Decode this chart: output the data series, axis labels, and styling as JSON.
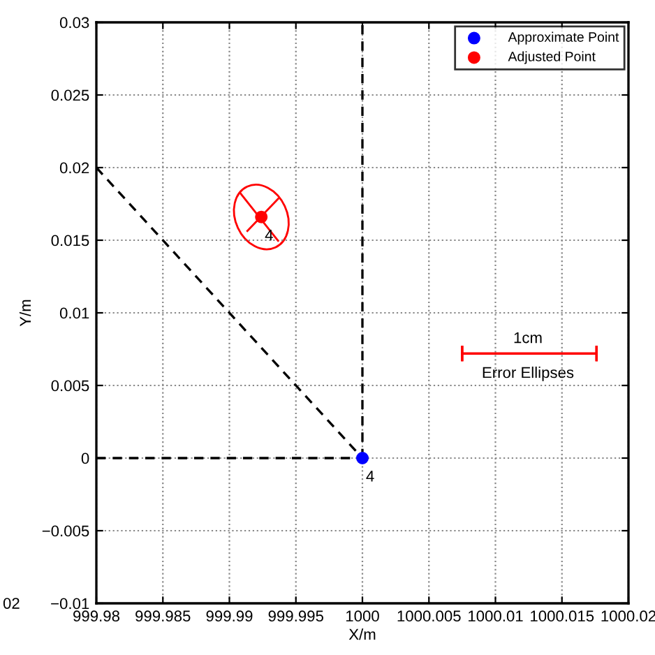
{
  "chart_data": {
    "type": "scatter",
    "xlabel": "X/m",
    "ylabel": "Y/m",
    "xlim": [
      999.98,
      1000.02
    ],
    "xticks": [
      999.98,
      999.985,
      999.99,
      999.995,
      1000,
      1000.005,
      1000.01,
      1000.015,
      1000.02
    ],
    "ylim": [
      -0.01,
      0.03
    ],
    "yticks": [
      {
        "value": -0.01,
        "label": "−0.01"
      },
      {
        "value": -0.005,
        "label": "−0.005"
      },
      0,
      0.005,
      0.01,
      0.015,
      0.02,
      0.025,
      0.03
    ],
    "grid": true,
    "legend": "top right",
    "series": [
      {
        "type": "line",
        "color": "#000000",
        "line_style": "dashed",
        "marker": "none",
        "x": [
          999.98,
          1000
        ],
        "values": [
          0,
          0
        ]
      },
      {
        "type": "line",
        "color": "#000000",
        "line_style": "dashed",
        "marker": "none",
        "x": [
          1000,
          1000
        ],
        "values": [
          0,
          0.03
        ]
      },
      {
        "type": "line",
        "color": "#000000",
        "line_style": "dashed",
        "marker": "none",
        "x": [
          999.98,
          1000
        ],
        "values": [
          0.02,
          0
        ]
      },
      {
        "type": "line",
        "color": "#ff0000",
        "line_style": "solid",
        "marker": "none",
        "x": [
          1000.0075,
          1000.0176
        ],
        "values": [
          0.0072,
          0.0072
        ]
      },
      {
        "name": "Approximate Point",
        "color": "#0000ff",
        "marker": "circle",
        "x": [
          1000
        ],
        "values": [
          0
        ]
      },
      {
        "name": "Adjusted Point",
        "color": "#ff0000",
        "marker": "circle",
        "x": [
          999.9924
        ],
        "values": [
          0.0166
        ]
      }
    ],
    "annotations": [
      {
        "text": "4",
        "x": 1000,
        "y": 0
      },
      {
        "text": "4",
        "x": 999.9924,
        "y": 0.0166
      },
      "1cm",
      "Error Ellipses",
      "02"
    ]
  }
}
